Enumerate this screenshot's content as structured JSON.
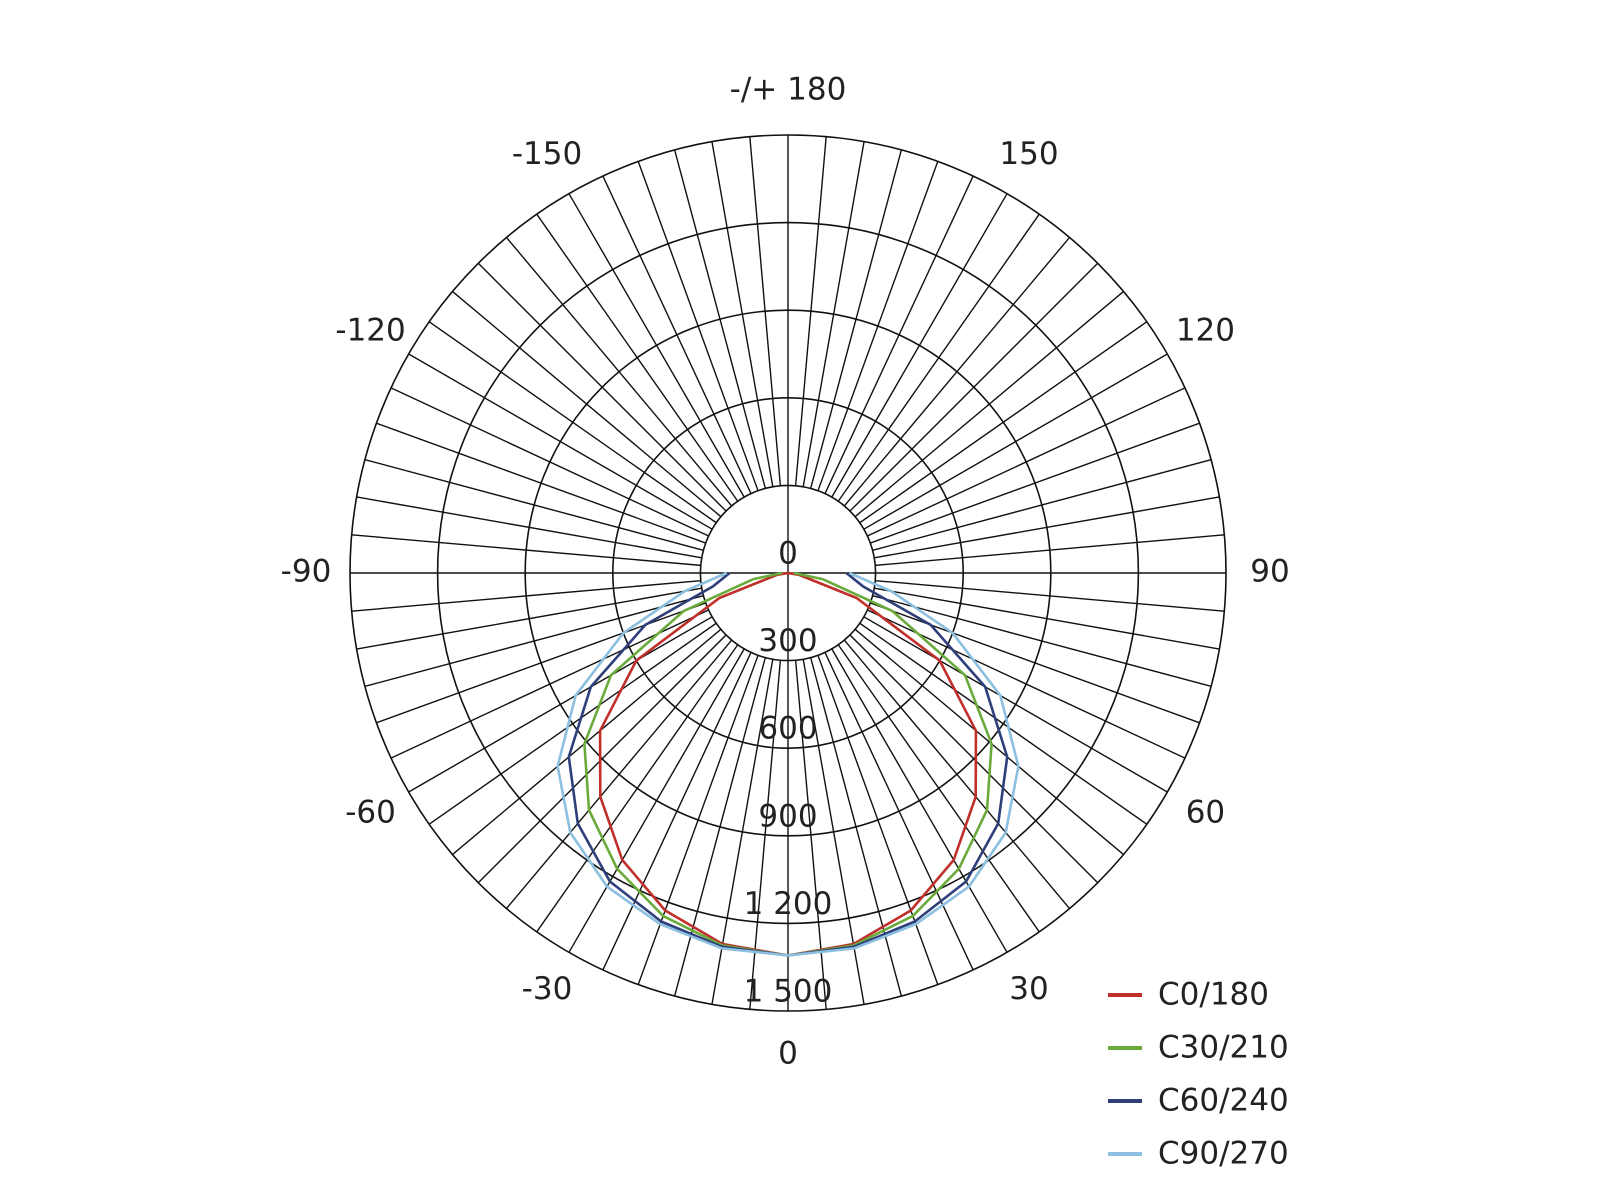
{
  "chart_data": {
    "type": "polar",
    "x": [
      -90,
      -80,
      -70,
      -60,
      -50,
      -40,
      -30,
      -20,
      -10,
      0,
      10,
      20,
      30,
      40,
      50,
      60,
      70,
      80,
      90
    ],
    "series": [
      {
        "name": "C0/180",
        "color": "#c0302a",
        "values": [
          0,
          40,
          250,
          600,
          840,
          1000,
          1135,
          1230,
          1290,
          1310,
          1290,
          1230,
          1135,
          1000,
          840,
          600,
          250,
          40,
          0
        ]
      },
      {
        "name": "C30/210",
        "color": "#6aaa3a",
        "values": [
          20,
          120,
          380,
          700,
          910,
          1060,
          1170,
          1250,
          1295,
          1310,
          1295,
          1250,
          1170,
          1060,
          910,
          700,
          380,
          120,
          20
        ]
      },
      {
        "name": "C60/240",
        "color": "#2e3f7a",
        "values": [
          200,
          260,
          520,
          780,
          980,
          1120,
          1220,
          1270,
          1300,
          1310,
          1300,
          1270,
          1220,
          1120,
          980,
          780,
          520,
          260,
          200
        ]
      },
      {
        "name": "C90/270",
        "color": "#8cbfe0",
        "values": [
          210,
          360,
          600,
          840,
          1030,
          1160,
          1240,
          1280,
          1305,
          1310,
          1305,
          1280,
          1240,
          1160,
          1030,
          840,
          600,
          360,
          210
        ]
      }
    ],
    "rlim": [
      0,
      1500
    ],
    "rticks": [
      0,
      300,
      600,
      900,
      {
        "value": 1200,
        "label": "1 200"
      },
      {
        "value": 1500,
        "label": "1 500"
      }
    ],
    "thetaticks": [
      {
        "value": 180,
        "label": "-/+ 180"
      },
      -150,
      150,
      -120,
      120,
      -90,
      90,
      -60,
      60,
      -30,
      30,
      0
    ],
    "theta_grid_step": 5,
    "grid": true,
    "legend": "lower right"
  }
}
